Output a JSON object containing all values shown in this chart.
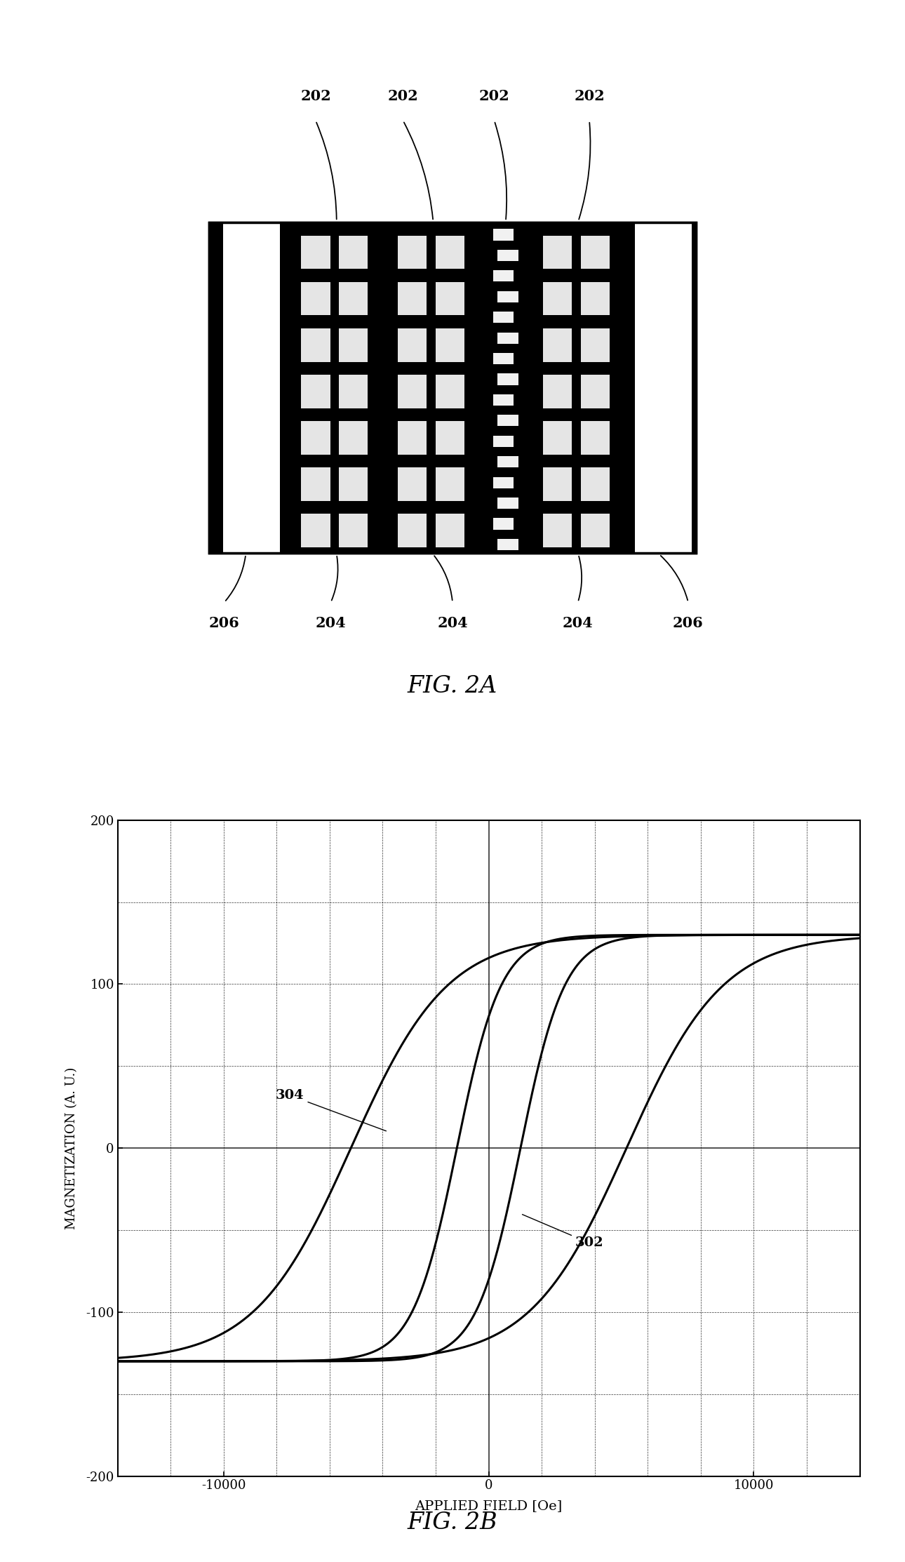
{
  "fig2a": {
    "title": "FIG. 2A",
    "labels_top": [
      "202",
      "202",
      "202",
      "202"
    ],
    "labels_bottom": [
      "206",
      "204",
      "204",
      "204",
      "206"
    ],
    "background_color": "#ffffff",
    "rect_color": "#000000",
    "white_strip_color": "#ffffff"
  },
  "fig2b": {
    "title": "FIG. 2B",
    "xlabel": "APPLIED FIELD [Oe]",
    "ylabel": "MAGNETIZATION (A. U.)",
    "xlim": [
      -14000,
      14000
    ],
    "ylim": [
      -200,
      200
    ],
    "xticks": [
      -10000,
      0,
      10000
    ],
    "yticks": [
      -200,
      -100,
      0,
      100,
      200
    ],
    "curve302_label": "302",
    "curve304_label": "304",
    "grid_color": "#000000",
    "curve_color": "#000000",
    "background_color": "#ffffff",
    "Msat": 130.0,
    "Hc_302": 5200,
    "k_302": 0.00055,
    "Hc_304": 1200,
    "k_304": 0.0012
  }
}
